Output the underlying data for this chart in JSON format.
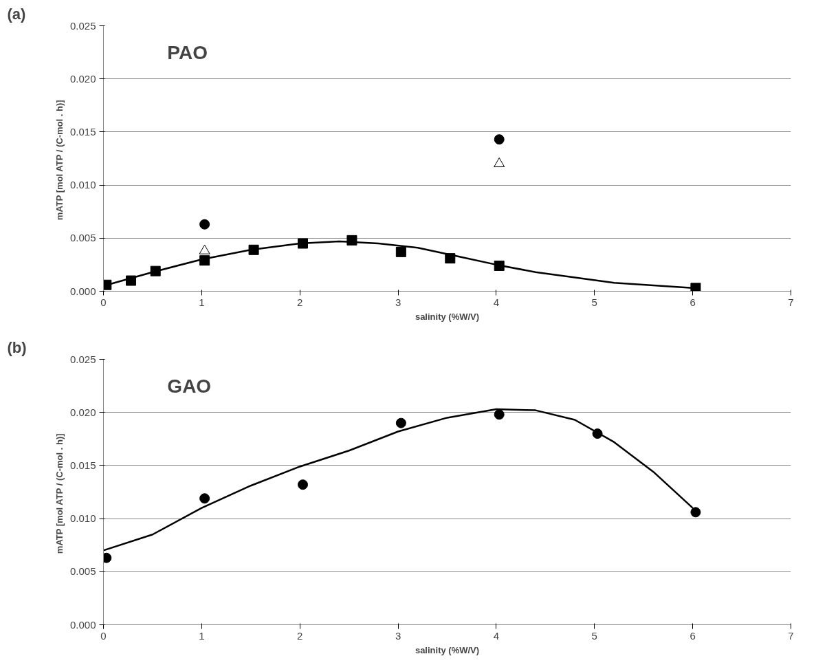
{
  "chart_data": [
    {
      "type": "scatter",
      "xlabel": "salinity (%W/V)",
      "ylabel": "mATP [mol  ATP / (C-mol . h)]",
      "annotations": [
        "(a)",
        "PAO"
      ],
      "xlim": [
        0,
        7
      ],
      "xticks": [
        0,
        1,
        2,
        3,
        4,
        5,
        6,
        7
      ],
      "ylim": [
        0,
        0.025
      ],
      "yticks": [
        {
          "value": 0,
          "label": "0.000"
        },
        {
          "value": 0.005,
          "label": "0.005"
        },
        {
          "value": 0.01,
          "label": "0.010"
        },
        {
          "value": 0.015,
          "label": "0.015"
        },
        {
          "value": 0.02,
          "label": "0.020"
        },
        {
          "value": 0.025,
          "label": "0.025"
        }
      ],
      "grid": "y",
      "series": [
        {
          "type": "line",
          "color": "#000000",
          "marker": "none",
          "x": [
            0,
            0.5,
            1,
            1.5,
            2,
            2.4,
            2.8,
            3.2,
            3.6,
            4,
            4.4,
            5.2,
            6
          ],
          "values": [
            0.0005,
            0.0018,
            0.003,
            0.0039,
            0.0045,
            0.0047,
            0.0045,
            0.0041,
            0.0033,
            0.0025,
            0.0018,
            0.0008,
            0.0003
          ]
        },
        {
          "type": "scatter",
          "color": "#000000",
          "marker": "square",
          "x": [
            0.03,
            0.28,
            0.53,
            1.03,
            1.53,
            2.03,
            2.53,
            3.03,
            3.53,
            4.03,
            6.03
          ],
          "values": [
            0.0006,
            0.001,
            0.0019,
            0.0029,
            0.0039,
            0.0045,
            0.0048,
            0.0037,
            0.0031,
            0.0024,
            0.0003
          ]
        },
        {
          "type": "scatter",
          "color": "#000000",
          "marker": "circle",
          "x": [
            1.03,
            4.03
          ],
          "values": [
            0.0063,
            0.0143
          ]
        },
        {
          "type": "scatter",
          "color": "#ffffff",
          "marker": "triangle",
          "x": [
            1.03,
            4.03
          ],
          "values": [
            0.0038,
            0.012
          ]
        }
      ]
    },
    {
      "type": "scatter",
      "xlabel": "salinity (%W/V)",
      "ylabel": "mATP [mol  ATP / (C-mol . h)]",
      "annotations": [
        "(b)",
        "GAO"
      ],
      "xlim": [
        0,
        7
      ],
      "xticks": [
        0,
        1,
        2,
        3,
        4,
        5,
        6,
        7
      ],
      "ylim": [
        0,
        0.025
      ],
      "yticks": [
        {
          "value": 0,
          "label": "0.000"
        },
        {
          "value": 0.005,
          "label": "0.005"
        },
        {
          "value": 0.01,
          "label": "0.010"
        },
        {
          "value": 0.015,
          "label": "0.015"
        },
        {
          "value": 0.02,
          "label": "0.020"
        },
        {
          "value": 0.025,
          "label": "0.025"
        }
      ],
      "grid": "y",
      "series": [
        {
          "type": "line",
          "color": "#000000",
          "marker": "none",
          "x": [
            0,
            0.5,
            1,
            1.5,
            2,
            2.5,
            3,
            3.5,
            4,
            4.4,
            4.8,
            5.2,
            5.6,
            6
          ],
          "values": [
            0.007,
            0.0085,
            0.011,
            0.0131,
            0.0149,
            0.0164,
            0.0182,
            0.0195,
            0.0203,
            0.0202,
            0.0193,
            0.0172,
            0.0144,
            0.011
          ]
        },
        {
          "type": "scatter",
          "color": "#000000",
          "marker": "circle",
          "x": [
            0.03,
            1.03,
            2.03,
            3.03,
            4.03,
            5.03,
            6.03
          ],
          "values": [
            0.0063,
            0.0119,
            0.0132,
            0.019,
            0.0198,
            0.018,
            0.0106
          ]
        }
      ]
    }
  ]
}
